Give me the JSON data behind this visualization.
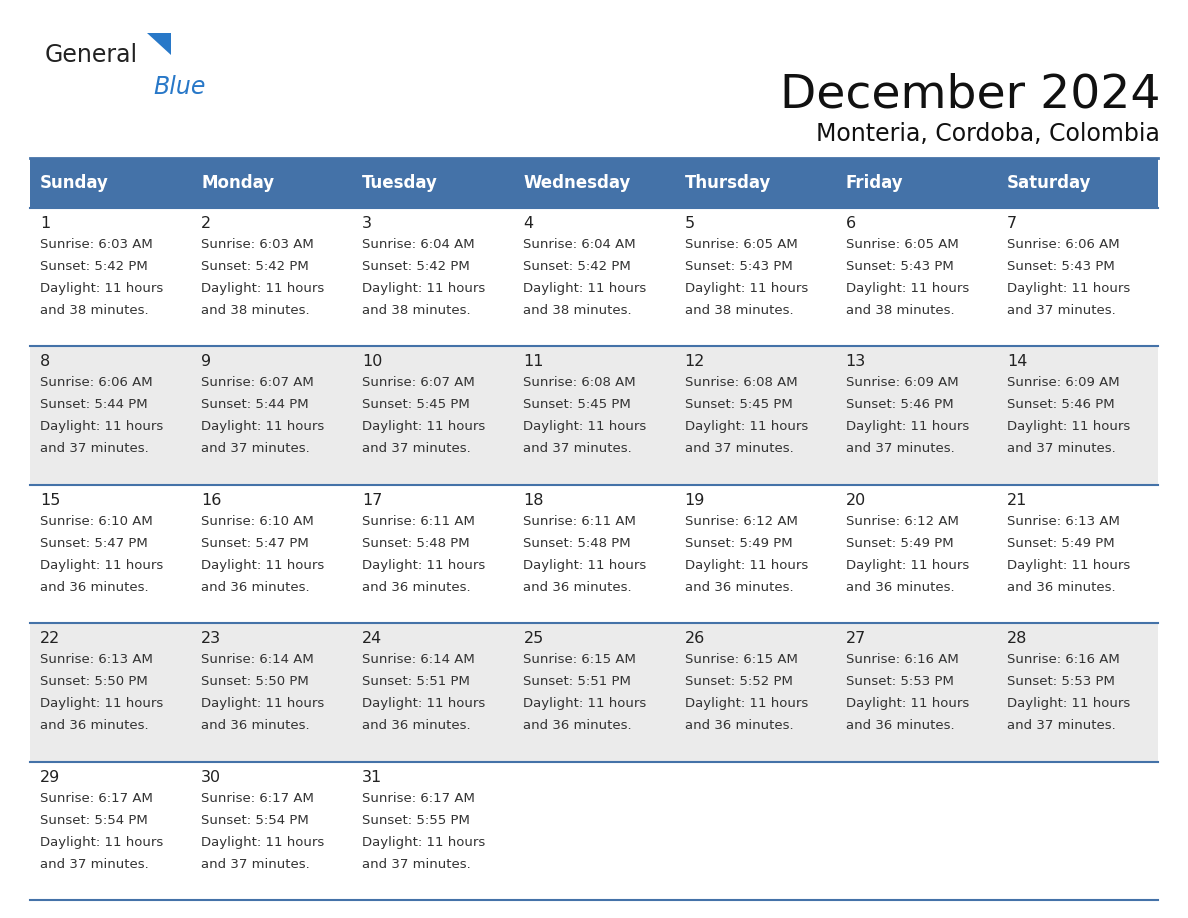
{
  "title": "December 2024",
  "subtitle": "Monteria, Cordoba, Colombia",
  "header_color": "#4472a8",
  "header_text_color": "#ffffff",
  "row_bg_even": "#ffffff",
  "row_bg_odd": "#ebebeb",
  "border_color": "#4472a8",
  "text_color": "#333333",
  "days_of_week": [
    "Sunday",
    "Monday",
    "Tuesday",
    "Wednesday",
    "Thursday",
    "Friday",
    "Saturday"
  ],
  "calendar_data": [
    [
      {
        "day": "1",
        "sunrise": "6:03 AM",
        "sunset": "5:42 PM",
        "daylight": "11 hours",
        "daylight2": "and 38 minutes."
      },
      {
        "day": "2",
        "sunrise": "6:03 AM",
        "sunset": "5:42 PM",
        "daylight": "11 hours",
        "daylight2": "and 38 minutes."
      },
      {
        "day": "3",
        "sunrise": "6:04 AM",
        "sunset": "5:42 PM",
        "daylight": "11 hours",
        "daylight2": "and 38 minutes."
      },
      {
        "day": "4",
        "sunrise": "6:04 AM",
        "sunset": "5:42 PM",
        "daylight": "11 hours",
        "daylight2": "and 38 minutes."
      },
      {
        "day": "5",
        "sunrise": "6:05 AM",
        "sunset": "5:43 PM",
        "daylight": "11 hours",
        "daylight2": "and 38 minutes."
      },
      {
        "day": "6",
        "sunrise": "6:05 AM",
        "sunset": "5:43 PM",
        "daylight": "11 hours",
        "daylight2": "and 38 minutes."
      },
      {
        "day": "7",
        "sunrise": "6:06 AM",
        "sunset": "5:43 PM",
        "daylight": "11 hours",
        "daylight2": "and 37 minutes."
      }
    ],
    [
      {
        "day": "8",
        "sunrise": "6:06 AM",
        "sunset": "5:44 PM",
        "daylight": "11 hours",
        "daylight2": "and 37 minutes."
      },
      {
        "day": "9",
        "sunrise": "6:07 AM",
        "sunset": "5:44 PM",
        "daylight": "11 hours",
        "daylight2": "and 37 minutes."
      },
      {
        "day": "10",
        "sunrise": "6:07 AM",
        "sunset": "5:45 PM",
        "daylight": "11 hours",
        "daylight2": "and 37 minutes."
      },
      {
        "day": "11",
        "sunrise": "6:08 AM",
        "sunset": "5:45 PM",
        "daylight": "11 hours",
        "daylight2": "and 37 minutes."
      },
      {
        "day": "12",
        "sunrise": "6:08 AM",
        "sunset": "5:45 PM",
        "daylight": "11 hours",
        "daylight2": "and 37 minutes."
      },
      {
        "day": "13",
        "sunrise": "6:09 AM",
        "sunset": "5:46 PM",
        "daylight": "11 hours",
        "daylight2": "and 37 minutes."
      },
      {
        "day": "14",
        "sunrise": "6:09 AM",
        "sunset": "5:46 PM",
        "daylight": "11 hours",
        "daylight2": "and 37 minutes."
      }
    ],
    [
      {
        "day": "15",
        "sunrise": "6:10 AM",
        "sunset": "5:47 PM",
        "daylight": "11 hours",
        "daylight2": "and 36 minutes."
      },
      {
        "day": "16",
        "sunrise": "6:10 AM",
        "sunset": "5:47 PM",
        "daylight": "11 hours",
        "daylight2": "and 36 minutes."
      },
      {
        "day": "17",
        "sunrise": "6:11 AM",
        "sunset": "5:48 PM",
        "daylight": "11 hours",
        "daylight2": "and 36 minutes."
      },
      {
        "day": "18",
        "sunrise": "6:11 AM",
        "sunset": "5:48 PM",
        "daylight": "11 hours",
        "daylight2": "and 36 minutes."
      },
      {
        "day": "19",
        "sunrise": "6:12 AM",
        "sunset": "5:49 PM",
        "daylight": "11 hours",
        "daylight2": "and 36 minutes."
      },
      {
        "day": "20",
        "sunrise": "6:12 AM",
        "sunset": "5:49 PM",
        "daylight": "11 hours",
        "daylight2": "and 36 minutes."
      },
      {
        "day": "21",
        "sunrise": "6:13 AM",
        "sunset": "5:49 PM",
        "daylight": "11 hours",
        "daylight2": "and 36 minutes."
      }
    ],
    [
      {
        "day": "22",
        "sunrise": "6:13 AM",
        "sunset": "5:50 PM",
        "daylight": "11 hours",
        "daylight2": "and 36 minutes."
      },
      {
        "day": "23",
        "sunrise": "6:14 AM",
        "sunset": "5:50 PM",
        "daylight": "11 hours",
        "daylight2": "and 36 minutes."
      },
      {
        "day": "24",
        "sunrise": "6:14 AM",
        "sunset": "5:51 PM",
        "daylight": "11 hours",
        "daylight2": "and 36 minutes."
      },
      {
        "day": "25",
        "sunrise": "6:15 AM",
        "sunset": "5:51 PM",
        "daylight": "11 hours",
        "daylight2": "and 36 minutes."
      },
      {
        "day": "26",
        "sunrise": "6:15 AM",
        "sunset": "5:52 PM",
        "daylight": "11 hours",
        "daylight2": "and 36 minutes."
      },
      {
        "day": "27",
        "sunrise": "6:16 AM",
        "sunset": "5:53 PM",
        "daylight": "11 hours",
        "daylight2": "and 36 minutes."
      },
      {
        "day": "28",
        "sunrise": "6:16 AM",
        "sunset": "5:53 PM",
        "daylight": "11 hours",
        "daylight2": "and 37 minutes."
      }
    ],
    [
      {
        "day": "29",
        "sunrise": "6:17 AM",
        "sunset": "5:54 PM",
        "daylight": "11 hours",
        "daylight2": "and 37 minutes."
      },
      {
        "day": "30",
        "sunrise": "6:17 AM",
        "sunset": "5:54 PM",
        "daylight": "11 hours",
        "daylight2": "and 37 minutes."
      },
      {
        "day": "31",
        "sunrise": "6:17 AM",
        "sunset": "5:55 PM",
        "daylight": "11 hours",
        "daylight2": "and 37 minutes."
      },
      null,
      null,
      null,
      null
    ]
  ],
  "logo_text1": "General",
  "logo_text2": "Blue",
  "logo_color1": "#222222",
  "logo_color2": "#2878c8"
}
